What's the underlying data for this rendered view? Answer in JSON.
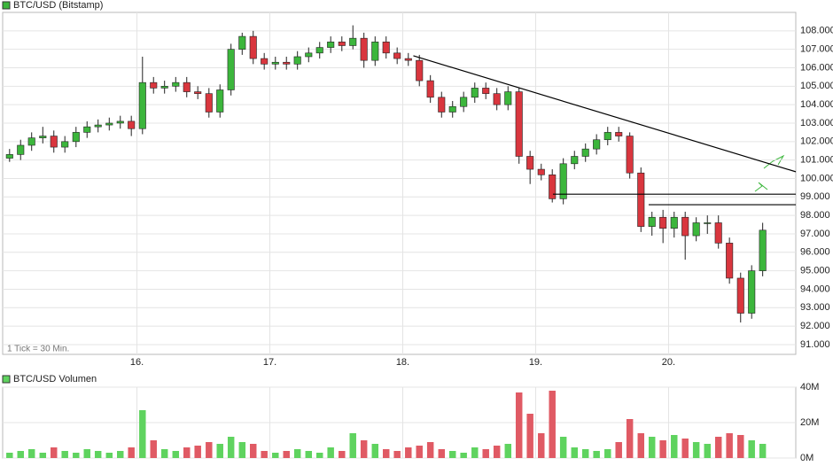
{
  "chart_data": [
    {
      "type": "candlestick",
      "title": "BTC/USD (Bitstamp)",
      "note": "1 Tick = 30 Min.",
      "up_color": "#3cb63c",
      "down_color": "#d9363e",
      "grid": true,
      "x": [
        15.042,
        15.125,
        15.208,
        15.292,
        15.375,
        15.458,
        15.542,
        15.625,
        15.708,
        15.792,
        15.875,
        15.958,
        16.042,
        16.125,
        16.208,
        16.292,
        16.375,
        16.458,
        16.542,
        16.625,
        16.708,
        16.792,
        16.875,
        16.958,
        17.042,
        17.125,
        17.208,
        17.292,
        17.375,
        17.458,
        17.542,
        17.625,
        17.708,
        17.792,
        17.875,
        17.958,
        18.042,
        18.125,
        18.208,
        18.292,
        18.375,
        18.458,
        18.542,
        18.625,
        18.708,
        18.792,
        18.875,
        18.958,
        19.042,
        19.125,
        19.208,
        19.292,
        19.375,
        19.458,
        19.542,
        19.625,
        19.708,
        19.792,
        19.875,
        19.958,
        20.042,
        20.125,
        20.208,
        20.292,
        20.375,
        20.458,
        20.542,
        20.625,
        20.708
      ],
      "open": [
        101100,
        101300,
        101800,
        102200,
        102300,
        101700,
        102000,
        102500,
        102800,
        102900,
        103000,
        103100,
        102700,
        105200,
        104900,
        105000,
        105200,
        104700,
        104600,
        103600,
        104800,
        107000,
        107700,
        106500,
        106200,
        106300,
        106200,
        106600,
        106800,
        107100,
        107400,
        107200,
        107600,
        106400,
        107400,
        106800,
        106500,
        106400,
        105300,
        104400,
        103600,
        103900,
        104400,
        104900,
        104600,
        104000,
        104700,
        101200,
        100500,
        100200,
        98900,
        100800,
        101200,
        101600,
        102100,
        102500,
        102300,
        100300,
        97400,
        97900,
        97300,
        97900,
        96900,
        97600,
        97600,
        96500,
        94600,
        92700,
        95000
      ],
      "high": [
        101600,
        102100,
        102500,
        102800,
        102600,
        102300,
        102800,
        103100,
        103200,
        103300,
        103400,
        103400,
        106600,
        105500,
        105300,
        105500,
        105500,
        105000,
        104900,
        105100,
        107300,
        107900,
        108000,
        106800,
        106600,
        106600,
        106900,
        107100,
        107400,
        107700,
        107700,
        108300,
        107900,
        107700,
        107700,
        107100,
        106800,
        106700,
        105600,
        104700,
        104200,
        104700,
        105200,
        105200,
        104900,
        105000,
        104900,
        101500,
        100800,
        100500,
        101100,
        101500,
        101900,
        102400,
        102800,
        102800,
        102500,
        100600,
        98200,
        98300,
        98200,
        98200,
        97900,
        98000,
        98000,
        96800,
        94900,
        95300,
        97600
      ],
      "low": [
        100900,
        101000,
        101500,
        101900,
        101400,
        101400,
        101700,
        102200,
        102500,
        102600,
        102700,
        102300,
        102400,
        104600,
        104600,
        104700,
        104400,
        104300,
        103300,
        103300,
        104500,
        106700,
        106200,
        105900,
        105900,
        105900,
        105900,
        106300,
        106500,
        106800,
        106900,
        107000,
        106000,
        106100,
        106500,
        106200,
        106100,
        105000,
        104100,
        103300,
        103300,
        103600,
        104100,
        104300,
        103700,
        103700,
        100800,
        99700,
        99900,
        98700,
        98600,
        100500,
        100900,
        101300,
        101800,
        102000,
        100000,
        97100,
        96900,
        96500,
        96800,
        95600,
        96600,
        97000,
        96200,
        94300,
        92200,
        92400,
        94700
      ],
      "close": [
        101300,
        101800,
        102200,
        102300,
        101700,
        102000,
        102500,
        102800,
        102900,
        103000,
        103100,
        102700,
        105200,
        104900,
        105000,
        105200,
        104700,
        104600,
        103600,
        104800,
        107000,
        107700,
        106500,
        106200,
        106300,
        106200,
        106600,
        106800,
        107100,
        107400,
        107200,
        107600,
        106400,
        107400,
        106800,
        106500,
        106400,
        105300,
        104400,
        103600,
        103900,
        104400,
        104900,
        104600,
        104000,
        104700,
        101200,
        100500,
        100200,
        98900,
        100800,
        101200,
        101600,
        102100,
        102500,
        102300,
        100300,
        97400,
        97900,
        97300,
        97900,
        96900,
        97600,
        97600,
        96500,
        94600,
        92700,
        95000,
        97200
      ],
      "xlim": [
        14.99,
        20.957
      ],
      "xticks": [
        {
          "value": 16,
          "label": "16."
        },
        {
          "value": 17,
          "label": "17."
        },
        {
          "value": 18,
          "label": "18."
        },
        {
          "value": 19,
          "label": "19."
        },
        {
          "value": 20,
          "label": "20."
        }
      ],
      "ylim": [
        90470,
        109000
      ],
      "yticks": [
        {
          "value": 91000,
          "label": "91.000"
        },
        {
          "value": 92000,
          "label": "92.000"
        },
        {
          "value": 93000,
          "label": "93.000"
        },
        {
          "value": 94000,
          "label": "94.000"
        },
        {
          "value": 95000,
          "label": "95.000"
        },
        {
          "value": 96000,
          "label": "96.000"
        },
        {
          "value": 97000,
          "label": "97.000"
        },
        {
          "value": 98000,
          "label": "98.000"
        },
        {
          "value": 99000,
          "label": "99.000"
        },
        {
          "value": 100000,
          "label": "100.000"
        },
        {
          "value": 101000,
          "label": "101.000"
        },
        {
          "value": 102000,
          "label": "102.000"
        },
        {
          "value": 103000,
          "label": "103.000"
        },
        {
          "value": 104000,
          "label": "104.000"
        },
        {
          "value": 105000,
          "label": "105.000"
        },
        {
          "value": 106000,
          "label": "106.000"
        },
        {
          "value": 107000,
          "label": "107.000"
        },
        {
          "value": 108000,
          "label": "108.000"
        }
      ],
      "lines": [
        {
          "color": "#000000",
          "x": [
            18.08,
            20.957
          ],
          "y": [
            106650,
            100365
          ]
        },
        {
          "color": "#000000",
          "x": [
            19.13,
            20.957
          ],
          "y": [
            99150,
            99150
          ]
        },
        {
          "color": "#000000",
          "x": [
            19.85,
            20.957
          ],
          "y": [
            98580,
            98580
          ]
        }
      ]
    },
    {
      "type": "bar",
      "title": "BTC/USD Volumen",
      "up_color": "#5fd35f",
      "down_color": "#e05a64",
      "grid": true,
      "x": [
        15.042,
        15.125,
        15.208,
        15.292,
        15.375,
        15.458,
        15.542,
        15.625,
        15.708,
        15.792,
        15.875,
        15.958,
        16.042,
        16.125,
        16.208,
        16.292,
        16.375,
        16.458,
        16.542,
        16.625,
        16.708,
        16.792,
        16.875,
        16.958,
        17.042,
        17.125,
        17.208,
        17.292,
        17.375,
        17.458,
        17.542,
        17.625,
        17.708,
        17.792,
        17.875,
        17.958,
        18.042,
        18.125,
        18.208,
        18.292,
        18.375,
        18.458,
        18.542,
        18.625,
        18.708,
        18.792,
        18.875,
        18.958,
        19.042,
        19.125,
        19.208,
        19.292,
        19.375,
        19.458,
        19.542,
        19.625,
        19.708,
        19.792,
        19.875,
        19.958,
        20.042,
        20.125,
        20.208,
        20.292,
        20.375,
        20.458,
        20.542,
        20.625,
        20.708
      ],
      "values": [
        3000000,
        4000000,
        5000000,
        3000000,
        6000000,
        4000000,
        3000000,
        5000000,
        4000000,
        3000000,
        4000000,
        6000000,
        27000000,
        10000000,
        5000000,
        4000000,
        6000000,
        7000000,
        9000000,
        8000000,
        12000000,
        9000000,
        8000000,
        4000000,
        3000000,
        4000000,
        5000000,
        4000000,
        3000000,
        6000000,
        4000000,
        14000000,
        10000000,
        8000000,
        5000000,
        4000000,
        6000000,
        7000000,
        9000000,
        5000000,
        4000000,
        3000000,
        6000000,
        5000000,
        7000000,
        8000000,
        37000000,
        25000000,
        14000000,
        38000000,
        12000000,
        6000000,
        5000000,
        4000000,
        5000000,
        9000000,
        22000000,
        14000000,
        12000000,
        10000000,
        13000000,
        11000000,
        9000000,
        8000000,
        12000000,
        14000000,
        13000000,
        10000000,
        8000000
      ],
      "xlim": [
        14.99,
        20.957
      ],
      "xticks": [
        16,
        17,
        18,
        19,
        20
      ],
      "ylim": [
        0,
        40000000
      ],
      "yticks": [
        {
          "value": 0,
          "label": "0M"
        },
        {
          "value": 20000000,
          "label": "20M"
        },
        {
          "value": 40000000,
          "label": "40M"
        }
      ]
    }
  ]
}
